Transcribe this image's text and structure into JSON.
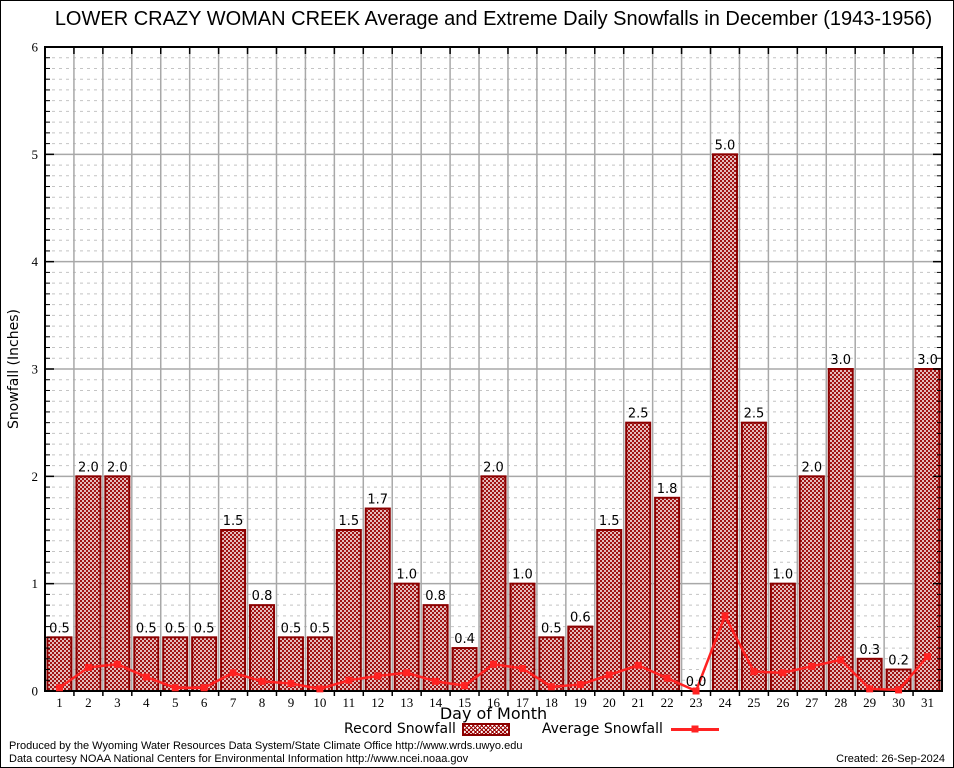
{
  "title": "LOWER CRAZY WOMAN CREEK Average and Extreme Daily Snowfalls in December (1943-1956)",
  "axes": {
    "x_label": "Day of Month",
    "y_label": "Snowfall (Inches)"
  },
  "legend": {
    "record_label": "Record Snowfall",
    "average_label": "Average Snowfall"
  },
  "footer": {
    "line1": "Produced by the Wyoming Water Resources Data System/State Climate Office http://www.wrds.uwyo.edu",
    "line2": "Data courtesy NOAA National Centers for Environmental Information http://www.ncei.noaa.gov",
    "created": "Created: 26-Sep-2024"
  },
  "colors": {
    "bar_fill": "#990000",
    "bar_border": "#8b0000",
    "line": "#ff2222",
    "grid_major": "#a8a8a8",
    "grid_minor": "#c4c4c4",
    "axis": "#000000",
    "background": "#ffffff"
  },
  "chart_data": {
    "type": "bar",
    "title": "LOWER CRAZY WOMAN CREEK Average and Extreme Daily Snowfalls in December (1943-1956)",
    "xlabel": "Day of Month",
    "ylabel": "Snowfall (Inches)",
    "ylim": [
      0,
      6
    ],
    "y_major_step": 1,
    "y_minor_step": 0.1,
    "grid": true,
    "legend_position": "bottom-center",
    "categories": [
      1,
      2,
      3,
      4,
      5,
      6,
      7,
      8,
      9,
      10,
      11,
      12,
      13,
      14,
      15,
      16,
      17,
      18,
      19,
      20,
      21,
      22,
      23,
      24,
      25,
      26,
      27,
      28,
      29,
      30,
      31
    ],
    "series": [
      {
        "name": "Record Snowfall",
        "type": "bar",
        "values": [
          0.5,
          2.0,
          2.0,
          0.5,
          0.5,
          0.5,
          1.5,
          0.8,
          0.5,
          0.5,
          1.5,
          1.7,
          1.0,
          0.8,
          0.4,
          2.0,
          1.0,
          0.5,
          0.6,
          1.5,
          2.5,
          1.8,
          0.0,
          5.0,
          2.5,
          1.0,
          2.0,
          3.0,
          0.3,
          0.2,
          3.0
        ],
        "value_labels": [
          "0.5",
          "2.0",
          "2.0",
          "0.5",
          "0.5",
          "0.5",
          "1.5",
          "0.8",
          "0.5",
          "0.5",
          "1.5",
          "1.7",
          "1.0",
          "0.8",
          "0.4",
          "2.0",
          "1.0",
          "0.5",
          "0.6",
          "1.5",
          "2.5",
          "1.8",
          "0.0",
          "5.0",
          "2.5",
          "1.0",
          "2.0",
          "3.0",
          "0.3",
          "0.2",
          "3.0"
        ]
      },
      {
        "name": "Average Snowfall",
        "type": "line",
        "values": [
          0.03,
          0.22,
          0.25,
          0.13,
          0.03,
          0.03,
          0.17,
          0.09,
          0.07,
          0.02,
          0.1,
          0.14,
          0.17,
          0.09,
          0.05,
          0.25,
          0.21,
          0.04,
          0.06,
          0.15,
          0.24,
          0.12,
          0.0,
          0.7,
          0.18,
          0.17,
          0.23,
          0.29,
          0.02,
          0.01,
          0.32
        ]
      }
    ]
  }
}
